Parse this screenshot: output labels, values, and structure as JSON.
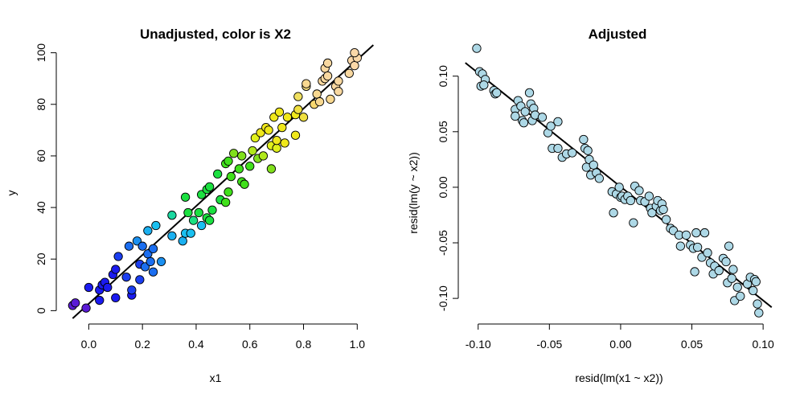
{
  "chart_data": [
    {
      "type": "scatter",
      "title": "Unadjusted, color is X2",
      "xlabel": "x1",
      "ylabel": "y",
      "xlim": [
        -0.1,
        1.05
      ],
      "ylim": [
        -3,
        103
      ],
      "xticks": [
        0.0,
        0.2,
        0.4,
        0.6,
        0.8,
        1.0
      ],
      "xtick_labels": [
        "0.0",
        "0.2",
        "0.4",
        "0.6",
        "0.8",
        "1.0"
      ],
      "yticks": [
        0,
        20,
        40,
        60,
        80,
        100
      ],
      "ytick_labels": [
        "0",
        "20",
        "40",
        "60",
        "80",
        "100"
      ],
      "grid": false,
      "fit_line": {
        "x": [
          -0.06,
          1.06
        ],
        "y": [
          -3.0,
          103.0
        ]
      },
      "points": [
        {
          "x": -0.06,
          "y": 2,
          "c": "#5a1bd6"
        },
        {
          "x": -0.05,
          "y": 3,
          "c": "#5a1bd6"
        },
        {
          "x": -0.01,
          "y": 1,
          "c": "#5a1bd6"
        },
        {
          "x": 0.0,
          "y": 9,
          "c": "#1b1bf0"
        },
        {
          "x": 0.04,
          "y": 4,
          "c": "#1b1bf0"
        },
        {
          "x": 0.04,
          "y": 8,
          "c": "#1b1bf0"
        },
        {
          "x": 0.05,
          "y": 10,
          "c": "#1b1bf0"
        },
        {
          "x": 0.06,
          "y": 11,
          "c": "#1b1bf0"
        },
        {
          "x": 0.07,
          "y": 9,
          "c": "#1b1bf0"
        },
        {
          "x": 0.09,
          "y": 14,
          "c": "#1b1bf0"
        },
        {
          "x": 0.1,
          "y": 16,
          "c": "#1b1bf0"
        },
        {
          "x": 0.1,
          "y": 5,
          "c": "#1b1bf0"
        },
        {
          "x": 0.11,
          "y": 21,
          "c": "#1b3ef0"
        },
        {
          "x": 0.14,
          "y": 13,
          "c": "#1b3ef0"
        },
        {
          "x": 0.15,
          "y": 25,
          "c": "#1b6ef0"
        },
        {
          "x": 0.16,
          "y": 6,
          "c": "#1b1bf0"
        },
        {
          "x": 0.16,
          "y": 8,
          "c": "#1b3ef0"
        },
        {
          "x": 0.18,
          "y": 27,
          "c": "#1b90f0"
        },
        {
          "x": 0.19,
          "y": 18,
          "c": "#1b3ef0"
        },
        {
          "x": 0.19,
          "y": 12,
          "c": "#1b3ef0"
        },
        {
          "x": 0.2,
          "y": 25,
          "c": "#1b6ef0"
        },
        {
          "x": 0.21,
          "y": 17,
          "c": "#1b6ef0"
        },
        {
          "x": 0.22,
          "y": 31,
          "c": "#1bb0f0"
        },
        {
          "x": 0.22,
          "y": 22,
          "c": "#1b6ef0"
        },
        {
          "x": 0.23,
          "y": 19,
          "c": "#1b6ef0"
        },
        {
          "x": 0.24,
          "y": 24,
          "c": "#1b6ef0"
        },
        {
          "x": 0.24,
          "y": 15,
          "c": "#1b6ef0"
        },
        {
          "x": 0.25,
          "y": 33,
          "c": "#1bc0f0"
        },
        {
          "x": 0.27,
          "y": 19,
          "c": "#1b90f0"
        },
        {
          "x": 0.31,
          "y": 29,
          "c": "#1bb0f0"
        },
        {
          "x": 0.31,
          "y": 37,
          "c": "#1bd8a0"
        },
        {
          "x": 0.35,
          "y": 27,
          "c": "#1bb0f0"
        },
        {
          "x": 0.36,
          "y": 30,
          "c": "#1bc0f0"
        },
        {
          "x": 0.36,
          "y": 44,
          "c": "#1be040"
        },
        {
          "x": 0.37,
          "y": 38,
          "c": "#1be040"
        },
        {
          "x": 0.38,
          "y": 30,
          "c": "#1bc0f0"
        },
        {
          "x": 0.39,
          "y": 35,
          "c": "#1be080"
        },
        {
          "x": 0.41,
          "y": 38,
          "c": "#1be040"
        },
        {
          "x": 0.42,
          "y": 33,
          "c": "#1bc0f0"
        },
        {
          "x": 0.42,
          "y": 45,
          "c": "#1be040"
        },
        {
          "x": 0.44,
          "y": 36,
          "c": "#1be040"
        },
        {
          "x": 0.44,
          "y": 47,
          "c": "#1be040"
        },
        {
          "x": 0.45,
          "y": 35,
          "c": "#1be040"
        },
        {
          "x": 0.45,
          "y": 48,
          "c": "#1be040"
        },
        {
          "x": 0.46,
          "y": 39,
          "c": "#1be040"
        },
        {
          "x": 0.48,
          "y": 53,
          "c": "#1be040"
        },
        {
          "x": 0.49,
          "y": 43,
          "c": "#1be040"
        },
        {
          "x": 0.51,
          "y": 42,
          "c": "#40e01b"
        },
        {
          "x": 0.51,
          "y": 57,
          "c": "#40e01b"
        },
        {
          "x": 0.52,
          "y": 58,
          "c": "#40e01b"
        },
        {
          "x": 0.52,
          "y": 46,
          "c": "#40e01b"
        },
        {
          "x": 0.53,
          "y": 52,
          "c": "#40e01b"
        },
        {
          "x": 0.54,
          "y": 61,
          "c": "#80e01b"
        },
        {
          "x": 0.56,
          "y": 55,
          "c": "#40e01b"
        },
        {
          "x": 0.57,
          "y": 50,
          "c": "#40e01b"
        },
        {
          "x": 0.57,
          "y": 60,
          "c": "#80e01b"
        },
        {
          "x": 0.58,
          "y": 49,
          "c": "#40e01b"
        },
        {
          "x": 0.6,
          "y": 56,
          "c": "#40e01b"
        },
        {
          "x": 0.61,
          "y": 62,
          "c": "#b0e81b"
        },
        {
          "x": 0.62,
          "y": 67,
          "c": "#e0f01b"
        },
        {
          "x": 0.63,
          "y": 59,
          "c": "#80e01b"
        },
        {
          "x": 0.64,
          "y": 69,
          "c": "#f0e81b"
        },
        {
          "x": 0.65,
          "y": 60,
          "c": "#b0e81b"
        },
        {
          "x": 0.66,
          "y": 71,
          "c": "#f0e81b"
        },
        {
          "x": 0.67,
          "y": 70,
          "c": "#f0e81b"
        },
        {
          "x": 0.68,
          "y": 64,
          "c": "#e0f01b"
        },
        {
          "x": 0.68,
          "y": 55,
          "c": "#80e01b"
        },
        {
          "x": 0.69,
          "y": 75,
          "c": "#f0e81b"
        },
        {
          "x": 0.7,
          "y": 63,
          "c": "#e0f01b"
        },
        {
          "x": 0.7,
          "y": 66,
          "c": "#f0e81b"
        },
        {
          "x": 0.71,
          "y": 77,
          "c": "#f0e81b"
        },
        {
          "x": 0.72,
          "y": 71,
          "c": "#f0e81b"
        },
        {
          "x": 0.73,
          "y": 65,
          "c": "#f0e81b"
        },
        {
          "x": 0.74,
          "y": 75,
          "c": "#f0e81b"
        },
        {
          "x": 0.77,
          "y": 76,
          "c": "#f0e81b"
        },
        {
          "x": 0.77,
          "y": 68,
          "c": "#f0e81b"
        },
        {
          "x": 0.78,
          "y": 78,
          "c": "#f0e040"
        },
        {
          "x": 0.78,
          "y": 83,
          "c": "#f0e060"
        },
        {
          "x": 0.8,
          "y": 75,
          "c": "#f0e040"
        },
        {
          "x": 0.81,
          "y": 87,
          "c": "#f8e080"
        },
        {
          "x": 0.81,
          "y": 88,
          "c": "#f8d890"
        },
        {
          "x": 0.84,
          "y": 80,
          "c": "#f8d870"
        },
        {
          "x": 0.85,
          "y": 84,
          "c": "#f8d890"
        },
        {
          "x": 0.86,
          "y": 81,
          "c": "#f8d890"
        },
        {
          "x": 0.87,
          "y": 89,
          "c": "#f8d8a0"
        },
        {
          "x": 0.88,
          "y": 94,
          "c": "#f8d8a0"
        },
        {
          "x": 0.88,
          "y": 90,
          "c": "#f8d8a0"
        },
        {
          "x": 0.89,
          "y": 96,
          "c": "#f8d8a0"
        },
        {
          "x": 0.89,
          "y": 91,
          "c": "#f8d8a0"
        },
        {
          "x": 0.9,
          "y": 82,
          "c": "#f8d890"
        },
        {
          "x": 0.92,
          "y": 87,
          "c": "#f8d8a0"
        },
        {
          "x": 0.93,
          "y": 89,
          "c": "#f8d8a0"
        },
        {
          "x": 0.93,
          "y": 85,
          "c": "#f8d8a0"
        },
        {
          "x": 0.97,
          "y": 92,
          "c": "#f8d8a0"
        },
        {
          "x": 0.98,
          "y": 97,
          "c": "#fad8a8"
        },
        {
          "x": 0.99,
          "y": 95,
          "c": "#fad8a8"
        },
        {
          "x": 1.0,
          "y": 98,
          "c": "#fad8a8"
        },
        {
          "x": 0.99,
          "y": 100,
          "c": "#fad8a8"
        }
      ]
    },
    {
      "type": "scatter",
      "title": "Adjusted",
      "xlabel": "resid(lm(x1 ~ x2))",
      "ylabel": "resid(lm(y ~ x2))",
      "xlim": [
        -0.11,
        0.105
      ],
      "ylim": [
        -0.118,
        0.128
      ],
      "xticks": [
        -0.1,
        -0.05,
        0.0,
        0.05,
        0.1
      ],
      "xtick_labels": [
        "-0.10",
        "-0.05",
        "0.00",
        "0.05",
        "0.10"
      ],
      "yticks": [
        -0.1,
        -0.05,
        0.0,
        0.05,
        0.1
      ],
      "ytick_labels": [
        "-0.10",
        "-0.05",
        "0.00",
        "0.05",
        "0.10"
      ],
      "grid": false,
      "point_color": "#add8e6",
      "fit_line": {
        "x": [
          -0.109,
          0.106
        ],
        "y": [
          0.112,
          -0.108
        ]
      },
      "points": [
        {
          "x": -0.101,
          "y": 0.125
        },
        {
          "x": -0.099,
          "y": 0.104
        },
        {
          "x": -0.097,
          "y": 0.102
        },
        {
          "x": -0.095,
          "y": 0.097
        },
        {
          "x": -0.098,
          "y": 0.091
        },
        {
          "x": -0.096,
          "y": 0.092
        },
        {
          "x": -0.089,
          "y": 0.087
        },
        {
          "x": -0.088,
          "y": 0.084
        },
        {
          "x": -0.087,
          "y": 0.085
        },
        {
          "x": -0.074,
          "y": 0.07
        },
        {
          "x": -0.074,
          "y": 0.064
        },
        {
          "x": -0.072,
          "y": 0.078
        },
        {
          "x": -0.07,
          "y": 0.073
        },
        {
          "x": -0.069,
          "y": 0.06
        },
        {
          "x": -0.068,
          "y": 0.058
        },
        {
          "x": -0.067,
          "y": 0.068
        },
        {
          "x": -0.064,
          "y": 0.085
        },
        {
          "x": -0.063,
          "y": 0.075
        },
        {
          "x": -0.062,
          "y": 0.06
        },
        {
          "x": -0.061,
          "y": 0.071
        },
        {
          "x": -0.06,
          "y": 0.065
        },
        {
          "x": -0.055,
          "y": 0.063
        },
        {
          "x": -0.051,
          "y": 0.049
        },
        {
          "x": -0.049,
          "y": 0.055
        },
        {
          "x": -0.048,
          "y": 0.035
        },
        {
          "x": -0.044,
          "y": 0.059
        },
        {
          "x": -0.044,
          "y": 0.035
        },
        {
          "x": -0.041,
          "y": 0.027
        },
        {
          "x": -0.038,
          "y": 0.03
        },
        {
          "x": -0.034,
          "y": 0.031
        },
        {
          "x": -0.026,
          "y": 0.043
        },
        {
          "x": -0.025,
          "y": 0.035
        },
        {
          "x": -0.024,
          "y": 0.018
        },
        {
          "x": -0.023,
          "y": 0.033
        },
        {
          "x": -0.022,
          "y": 0.025
        },
        {
          "x": -0.021,
          "y": 0.011
        },
        {
          "x": -0.019,
          "y": 0.02
        },
        {
          "x": -0.017,
          "y": 0.013
        },
        {
          "x": -0.015,
          "y": 0.008
        },
        {
          "x": -0.006,
          "y": -0.004
        },
        {
          "x": -0.005,
          "y": -0.023
        },
        {
          "x": -0.003,
          "y": -0.006
        },
        {
          "x": -0.001,
          "y": 0.0
        },
        {
          "x": 0.0,
          "y": -0.009
        },
        {
          "x": 0.001,
          "y": -0.008
        },
        {
          "x": 0.003,
          "y": -0.011
        },
        {
          "x": 0.005,
          "y": -0.008
        },
        {
          "x": 0.007,
          "y": -0.012
        },
        {
          "x": 0.009,
          "y": -0.032
        },
        {
          "x": 0.01,
          "y": 0.001
        },
        {
          "x": 0.013,
          "y": -0.003
        },
        {
          "x": 0.014,
          "y": -0.012
        },
        {
          "x": 0.017,
          "y": -0.013
        },
        {
          "x": 0.02,
          "y": -0.008
        },
        {
          "x": 0.021,
          "y": -0.019
        },
        {
          "x": 0.022,
          "y": -0.023
        },
        {
          "x": 0.025,
          "y": -0.017
        },
        {
          "x": 0.026,
          "y": -0.012
        },
        {
          "x": 0.028,
          "y": -0.021
        },
        {
          "x": 0.029,
          "y": -0.015
        },
        {
          "x": 0.03,
          "y": -0.02
        },
        {
          "x": 0.032,
          "y": -0.029
        },
        {
          "x": 0.035,
          "y": -0.037
        },
        {
          "x": 0.037,
          "y": -0.039
        },
        {
          "x": 0.041,
          "y": -0.043
        },
        {
          "x": 0.042,
          "y": -0.053
        },
        {
          "x": 0.046,
          "y": -0.043
        },
        {
          "x": 0.049,
          "y": -0.052
        },
        {
          "x": 0.051,
          "y": -0.055
        },
        {
          "x": 0.052,
          "y": -0.076
        },
        {
          "x": 0.053,
          "y": -0.041
        },
        {
          "x": 0.054,
          "y": -0.054
        },
        {
          "x": 0.057,
          "y": -0.063
        },
        {
          "x": 0.059,
          "y": -0.041
        },
        {
          "x": 0.061,
          "y": -0.059
        },
        {
          "x": 0.063,
          "y": -0.068
        },
        {
          "x": 0.065,
          "y": -0.078
        },
        {
          "x": 0.066,
          "y": -0.071
        },
        {
          "x": 0.069,
          "y": -0.075
        },
        {
          "x": 0.072,
          "y": -0.064
        },
        {
          "x": 0.074,
          "y": -0.067
        },
        {
          "x": 0.075,
          "y": -0.086
        },
        {
          "x": 0.076,
          "y": -0.053
        },
        {
          "x": 0.078,
          "y": -0.082
        },
        {
          "x": 0.079,
          "y": -0.074
        },
        {
          "x": 0.08,
          "y": -0.102
        },
        {
          "x": 0.082,
          "y": -0.09
        },
        {
          "x": 0.084,
          "y": -0.098
        },
        {
          "x": 0.089,
          "y": -0.087
        },
        {
          "x": 0.091,
          "y": -0.081
        },
        {
          "x": 0.093,
          "y": -0.093
        },
        {
          "x": 0.094,
          "y": -0.083
        },
        {
          "x": 0.096,
          "y": -0.105
        },
        {
          "x": 0.097,
          "y": -0.113
        },
        {
          "x": 0.095,
          "y": -0.085
        }
      ]
    }
  ]
}
